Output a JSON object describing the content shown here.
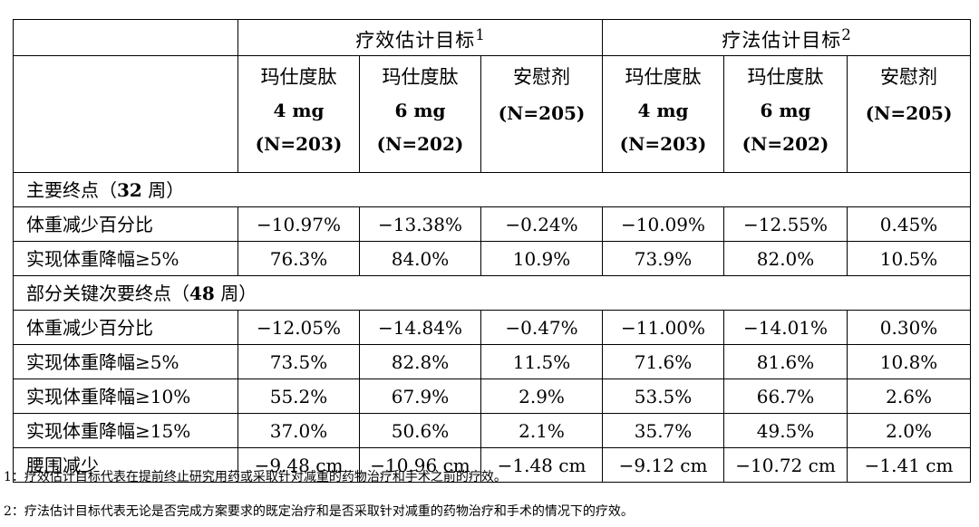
{
  "table": {
    "groups": [
      {
        "label": "疗效估计目标",
        "sup": "1"
      },
      {
        "label": "疗法估计目标",
        "sup": "2"
      }
    ],
    "columns": [
      {
        "drug": "玛仕度肽",
        "dose": "4 mg",
        "n": "(N=203)"
      },
      {
        "drug": "玛仕度肽",
        "dose": "6 mg",
        "n": "(N=202)"
      },
      {
        "drug": "安慰剂",
        "dose": "",
        "n": "(N=205)"
      },
      {
        "drug": "玛仕度肽",
        "dose": "4 mg",
        "n": "(N=203)"
      },
      {
        "drug": "玛仕度肽",
        "dose": "6 mg",
        "n": "(N=202)"
      },
      {
        "drug": "安慰剂",
        "dose": "",
        "n": "(N=205)"
      }
    ],
    "section1": {
      "title_pre": "主要终点（",
      "title_bold": "32",
      "title_post": " 周）"
    },
    "rows1": [
      {
        "label": "体重减少百分比",
        "values": [
          "−10.97%",
          "−13.38%",
          "−0.24%",
          "−10.09%",
          "−12.55%",
          "0.45%"
        ]
      },
      {
        "label": "实现体重降幅≥5%",
        "values": [
          "76.3%",
          "84.0%",
          "10.9%",
          "73.9%",
          "82.0%",
          "10.5%"
        ]
      }
    ],
    "section2": {
      "title_pre": "部分关键次要终点（",
      "title_bold": "48",
      "title_post": " 周）"
    },
    "rows2": [
      {
        "label": "体重减少百分比",
        "values": [
          "−12.05%",
          "−14.84%",
          "−0.47%",
          "−11.00%",
          "−14.01%",
          "0.30%"
        ]
      },
      {
        "label": "实现体重降幅≥5%",
        "values": [
          "73.5%",
          "82.8%",
          "11.5%",
          "71.6%",
          "81.6%",
          "10.8%"
        ]
      },
      {
        "label": "实现体重降幅≥10%",
        "values": [
          "55.2%",
          "67.9%",
          "2.9%",
          "53.5%",
          "66.7%",
          "2.6%"
        ]
      },
      {
        "label": "实现体重降幅≥15%",
        "values": [
          "37.0%",
          "50.6%",
          "2.1%",
          "35.7%",
          "49.5%",
          "2.0%"
        ]
      },
      {
        "label": "腰围减少",
        "values": [
          "−9.48 cm",
          "−10.96 cm",
          "−1.48 cm",
          "−9.12 cm",
          "−10.72 cm",
          "−1.41 cm"
        ]
      }
    ]
  },
  "footnotes": [
    "1：疗效估计目标代表在提前终止研究用药或采取针对减重的药物治疗和手术之前的疗效。",
    "2：疗法估计目标代表无论是否完成方案要求的既定治疗和是否采取针对减重的药物治疗和手术的情况下的疗效。"
  ]
}
